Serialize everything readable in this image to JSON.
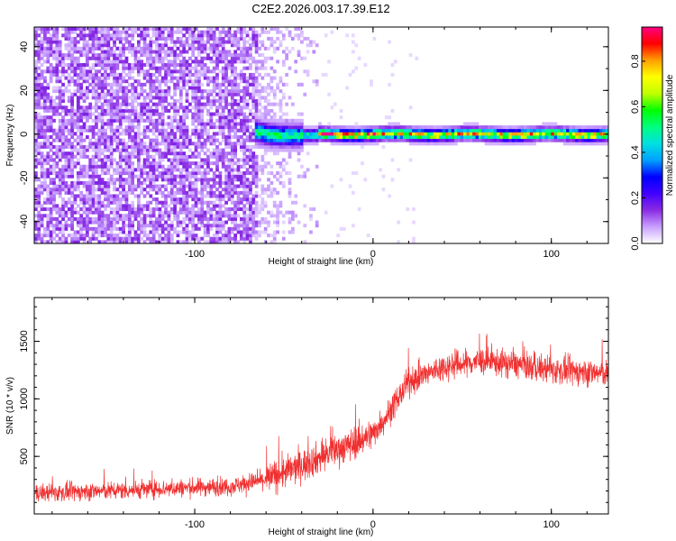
{
  "title": "C2E2.2026.003.17.39.E12",
  "colors": {
    "snr_line": "#f03030",
    "spectrogram_low": "#9b30ff",
    "colormap": [
      "#ffffff",
      "#c8a0ff",
      "#8a2be2",
      "#4000ff",
      "#0000ff",
      "#00a0ff",
      "#00e0e0",
      "#00ff80",
      "#00ff00",
      "#c0ff00",
      "#ffff00",
      "#ffa000",
      "#ff0000",
      "#ff0080"
    ]
  },
  "chart_data": [
    {
      "type": "heatmap",
      "xlabel": "Height of straight line (km)",
      "ylabel": "Frequency (Hz)",
      "xlim": [
        -190,
        132
      ],
      "ylim": [
        -50,
        49
      ],
      "x_ticks": [
        -100,
        0,
        100
      ],
      "x_tick_labels": [
        "-100",
        "0",
        "100"
      ],
      "y_ticks": [
        -40,
        -20,
        0,
        20,
        40
      ],
      "y_tick_labels": [
        "-40",
        "-20",
        "0",
        "20",
        "40"
      ],
      "colorbar": {
        "label": "Normalized spectral amplitude",
        "range": [
          0,
          0.95
        ],
        "ticks": [
          0.0,
          0.2,
          0.4,
          0.6,
          0.8
        ],
        "tick_labels": [
          "0.0",
          "0.2",
          "0.4",
          "0.6",
          "0.8"
        ]
      },
      "features": {
        "noise_region_x": [
          -190,
          -65
        ],
        "noise_amplitude": 0.1,
        "fading_region_x": [
          -65,
          -30
        ],
        "signal_line_start_x": -66,
        "signal_frequency_hz": 0,
        "signal_band_half_width_hz": 2,
        "signal_peak_amplitude": 0.9
      }
    },
    {
      "type": "line",
      "xlabel": "Height of straight line (km)",
      "ylabel": "SNR (10 * v/v)",
      "xlim": [
        -190,
        132
      ],
      "ylim": [
        0,
        1880
      ],
      "x_ticks": [
        -100,
        0,
        100
      ],
      "x_tick_labels": [
        "-100",
        "0",
        "100"
      ],
      "y_ticks": [
        500,
        1000,
        1500
      ],
      "y_tick_labels": [
        "500",
        "1000",
        "1500"
      ],
      "series": [
        {
          "x": [
            -190,
            -150,
            -100,
            -80,
            -60,
            -40,
            -20,
            -10,
            0,
            10,
            20,
            40,
            60,
            80,
            100,
            120,
            132
          ],
          "values": [
            180,
            200,
            230,
            240,
            300,
            420,
            560,
            620,
            700,
            900,
            1150,
            1280,
            1330,
            1300,
            1250,
            1230,
            1220
          ]
        }
      ]
    }
  ]
}
